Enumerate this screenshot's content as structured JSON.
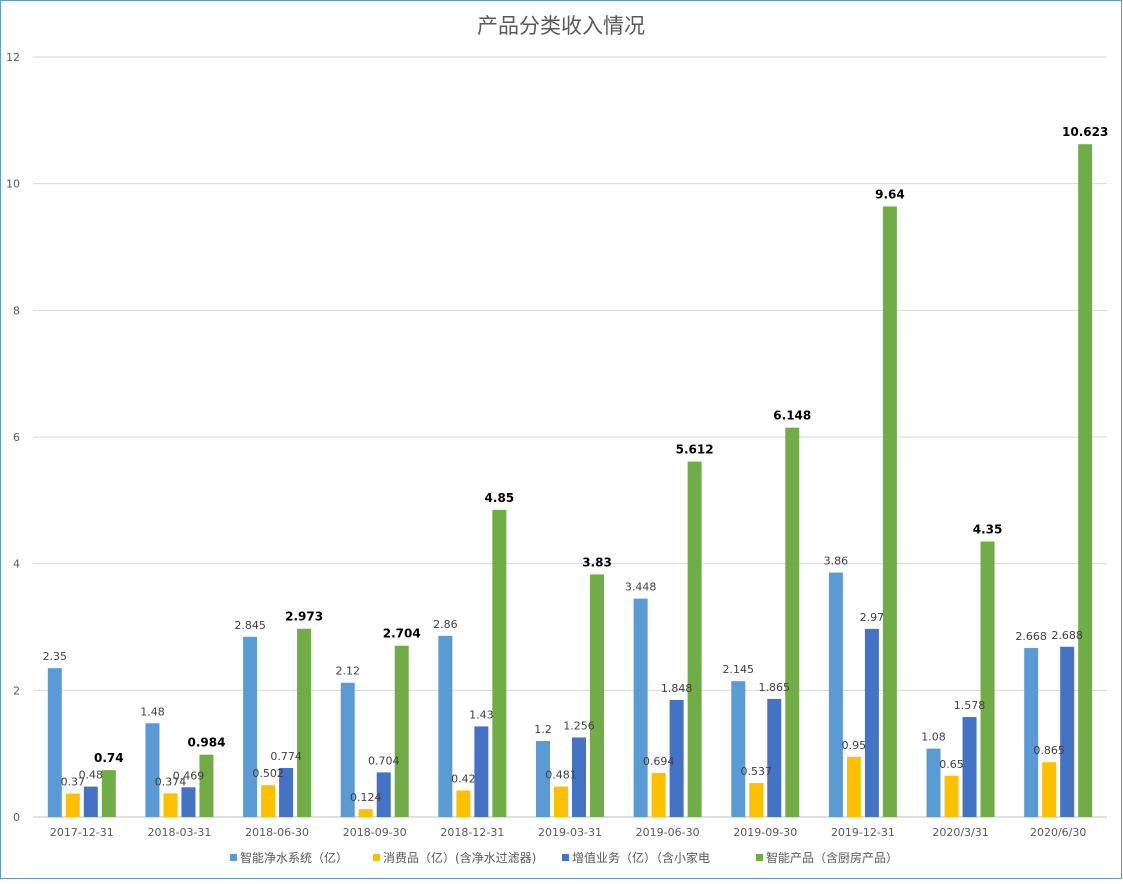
{
  "chart_data": {
    "type": "bar",
    "title": "产品分类收入情况",
    "xlabel": "",
    "ylabel": "",
    "ylim": [
      0,
      12
    ],
    "yticks": [
      0,
      2,
      4,
      6,
      8,
      10,
      12
    ],
    "grid": true,
    "legend_position": "bottom",
    "categories": [
      "2017-12-31",
      "2018-03-31",
      "2018-06-30",
      "2018-09-30",
      "2018-12-31",
      "2019-03-31",
      "2019-06-30",
      "2019-09-30",
      "2019-12-31",
      "2020/3/31",
      "2020/6/30"
    ],
    "series": [
      {
        "name": "智能净水系统（亿）",
        "color": "#5b9bd5",
        "values": [
          2.35,
          1.48,
          2.845,
          2.12,
          2.86,
          1.2,
          3.448,
          2.145,
          3.86,
          1.08,
          2.668
        ],
        "labels": [
          "2.35",
          "1.48",
          "2.845",
          "2.12",
          "2.86",
          "1.2",
          "3.448",
          "2.145",
          "3.86",
          "1.08",
          "2.668"
        ]
      },
      {
        "name": "消费品（亿）(含净水过滤器)",
        "color": "#ffc000",
        "values": [
          0.37,
          0.374,
          0.502,
          0.124,
          0.42,
          0.481,
          0.694,
          0.537,
          0.95,
          0.65,
          0.865
        ],
        "labels": [
          "0.37",
          "0.374",
          "0.502",
          "0.124",
          "0.42",
          "0.481",
          "0.694",
          "0.537",
          "0.95",
          "0.65",
          "0.865"
        ]
      },
      {
        "name": "增值业务（亿）（含小家电",
        "color": "#4472c4",
        "values": [
          0.48,
          0.469,
          0.774,
          0.704,
          1.43,
          1.256,
          1.848,
          1.865,
          2.97,
          1.578,
          2.688
        ],
        "labels": [
          "0.48",
          "0.469",
          "0.774",
          "0.704",
          "1.43",
          "1.256",
          "1.848",
          "1.865",
          "2.97",
          "1.578",
          "2.688"
        ]
      },
      {
        "name": "智能产品（含厨房产品）",
        "color": "#70ad47",
        "values": [
          0.74,
          0.984,
          2.973,
          2.704,
          4.85,
          3.83,
          5.612,
          6.148,
          9.64,
          4.35,
          10.623
        ],
        "labels": [
          "0.74",
          "0.984",
          "2.973",
          "2.704",
          "4.85",
          "3.83",
          "5.612",
          "6.148",
          "9.64",
          "4.35",
          "10.623"
        ]
      }
    ]
  }
}
